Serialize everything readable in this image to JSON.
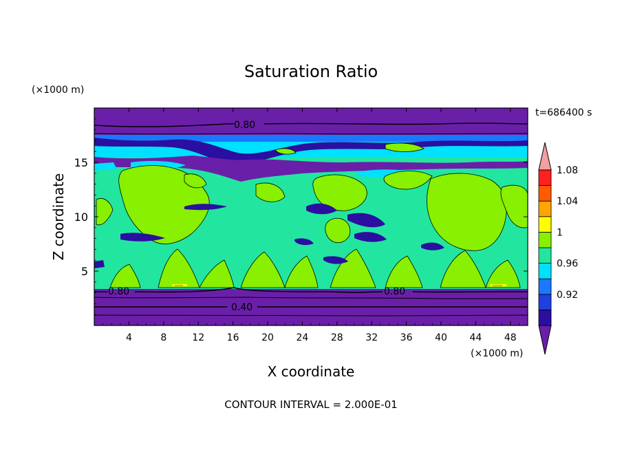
{
  "chart_data": {
    "type": "heatmap",
    "title": "Saturation Ratio",
    "xlabel": "X coordinate",
    "ylabel": "Z coordinate",
    "x_unit": "(×1000 m)",
    "y_unit": "(×1000 m)",
    "time_label": "t=686400 s",
    "footer": "CONTOUR INTERVAL = 2.000E-01",
    "xlim": [
      0,
      50
    ],
    "ylim": [
      0,
      20
    ],
    "x_ticks": [
      "4",
      "8",
      "12",
      "16",
      "20",
      "24",
      "28",
      "32",
      "36",
      "40",
      "44",
      "48"
    ],
    "y_ticks": [
      "5",
      "10",
      "15"
    ],
    "colorbar": {
      "colors": [
        "#6a1fa8",
        "#2a0fa0",
        "#1f3fe0",
        "#1a78ff",
        "#00e0ff",
        "#22e6a0",
        "#88f000",
        "#ffff00",
        "#ffa500",
        "#ff5a00",
        "#ff2020",
        "#f0a0a0"
      ],
      "labels": [
        "0.92",
        "0.96",
        "1",
        "1.04",
        "1.08"
      ]
    },
    "contour_labels": [
      "0.80",
      "0.80",
      "0.80",
      "0.40"
    ],
    "layers": [
      {
        "z_range": [
          0,
          1.5
        ],
        "value": "<0.40"
      },
      {
        "z_range": [
          1.5,
          3.5
        ],
        "value": "0.40-0.80"
      },
      {
        "z_range": [
          3.5,
          15
        ],
        "value": "0.96-1.00"
      },
      {
        "z_range": [
          15,
          15.5
        ],
        "value": "<0.92"
      },
      {
        "z_range": [
          15.5,
          17.5
        ],
        "value": "0.92-1.00"
      },
      {
        "z_range": [
          17.5,
          20
        ],
        "value": "<0.80"
      }
    ]
  }
}
